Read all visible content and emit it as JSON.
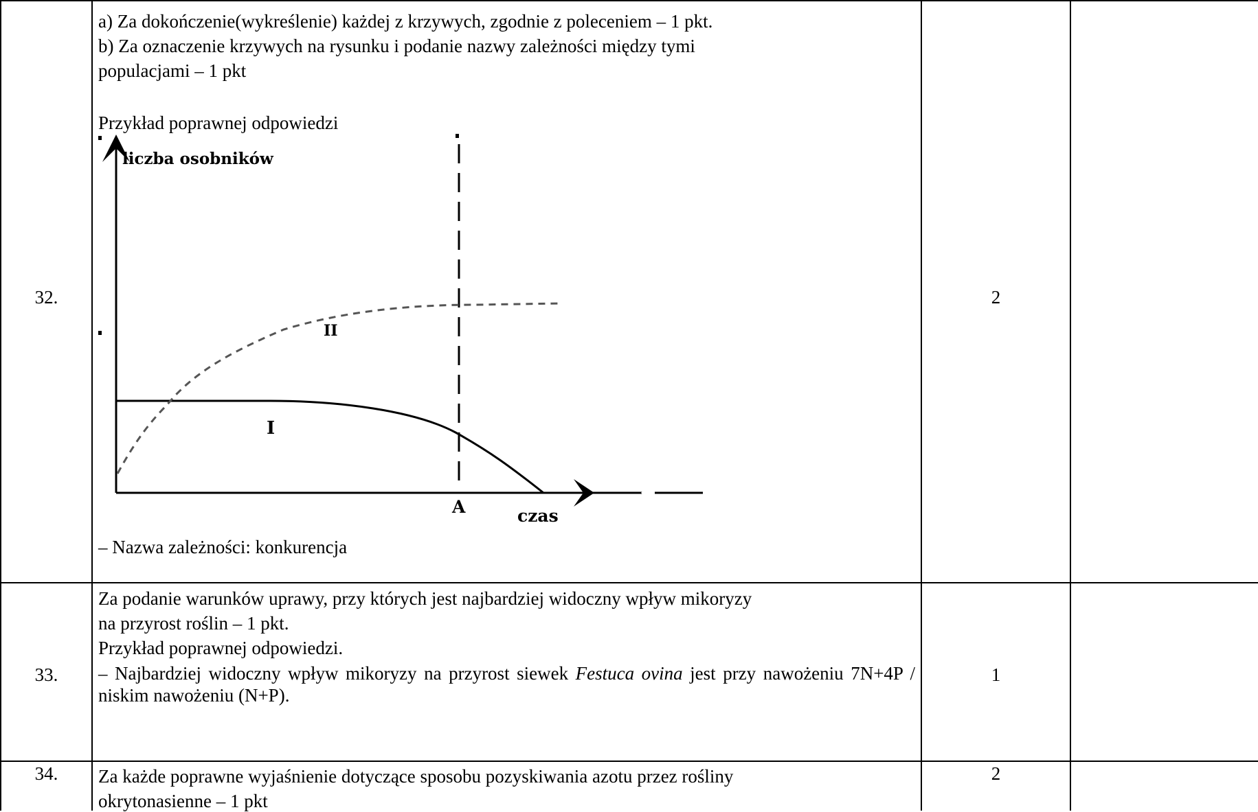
{
  "rows": [
    {
      "number": "32.",
      "criteria": [
        "a) Za dokończenie(wykreślenie) każdej z krzywych, zgodnie z poleceniem – 1 pkt.",
        "b) Za oznaczenie krzywych na rysunku i podanie nazwy zależności między tymi",
        "populacjami – 1 pkt"
      ],
      "example_label": "Przykład poprawnej odpowiedzi",
      "chart": {
        "y_axis_label": "liczba osobników",
        "x_axis_label": "czas",
        "marker_label": "A",
        "curve_1_label": "I",
        "curve_2_label": "II"
      },
      "answer": "– Nazwa zależności: konkurencja",
      "points": "2"
    },
    {
      "number": "33.",
      "criteria": [
        "Za podanie warunków uprawy, przy których jest najbardziej widoczny wpływ mikoryzy",
        "na przyrost roślin – 1 pkt.",
        "Przykład poprawnej odpowiedzi."
      ],
      "answer_pre": "– Najbardziej widoczny wpływ mikoryzy na przyrost siewek ",
      "answer_species": "Festuca ovina",
      "answer_post": " jest przy nawożeniu 7N+4P / niskim nawożeniu (N+P).",
      "points": "1"
    },
    {
      "number": "34.",
      "criteria": [
        "Za każde poprawne wyjaśnienie dotyczące sposobu pozyskiwania azotu przez rośliny",
        "okrytonasienne – 1 pkt"
      ],
      "points": "2"
    }
  ],
  "chart_data": {
    "type": "line",
    "xlabel": "czas",
    "ylabel": "liczba osobników",
    "annotations": [
      "A"
    ],
    "series": [
      {
        "name": "I",
        "style": "solid"
      },
      {
        "name": "II",
        "style": "dashed"
      }
    ]
  }
}
